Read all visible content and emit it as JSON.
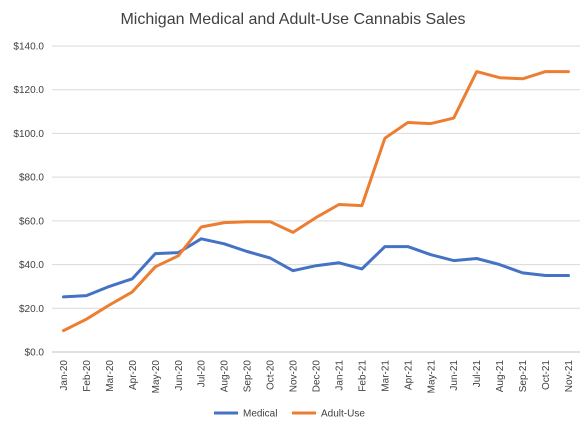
{
  "chart_data": {
    "type": "line",
    "title": "Michigan Medical and Adult-Use Cannabis Sales",
    "xlabel": "",
    "ylabel": "",
    "ylim": [
      0,
      140
    ],
    "yticks": [
      0,
      20,
      40,
      60,
      80,
      100,
      120,
      140
    ],
    "ytick_labels": [
      "$0.0",
      "$20.0",
      "$40.0",
      "$60.0",
      "$80.0",
      "$100.0",
      "$120.0",
      "$140.0"
    ],
    "grid": true,
    "legend_position": "bottom",
    "categories": [
      "Jan-20",
      "Feb-20",
      "Mar-20",
      "Apr-20",
      "May-20",
      "Jun-20",
      "Jul-20",
      "Aug-20",
      "Sep-20",
      "Oct-20",
      "Nov-20",
      "Dec-20",
      "Jan-21",
      "Feb-21",
      "Mar-21",
      "Apr-21",
      "May-21",
      "Jun-21",
      "Jul-21",
      "Aug-21",
      "Sep-21",
      "Oct-21",
      "Nov-21"
    ],
    "series": [
      {
        "name": "Medical",
        "color": "#4472c4",
        "values": [
          25.2,
          25.8,
          30.0,
          33.5,
          45.0,
          45.5,
          51.8,
          49.5,
          46.0,
          43.0,
          37.2,
          39.5,
          40.8,
          38.0,
          48.2,
          48.2,
          44.5,
          41.8,
          42.8,
          40.0,
          36.2,
          35.0,
          35.0
        ]
      },
      {
        "name": "Adult-Use",
        "color": "#ed7d31",
        "values": [
          9.8,
          15.0,
          21.5,
          27.5,
          39.0,
          44.0,
          57.2,
          59.2,
          59.6,
          59.6,
          54.7,
          61.5,
          67.5,
          67.0,
          97.8,
          105.0,
          104.5,
          107.0,
          128.3,
          125.5,
          125.0,
          128.3,
          128.3
        ]
      }
    ]
  }
}
